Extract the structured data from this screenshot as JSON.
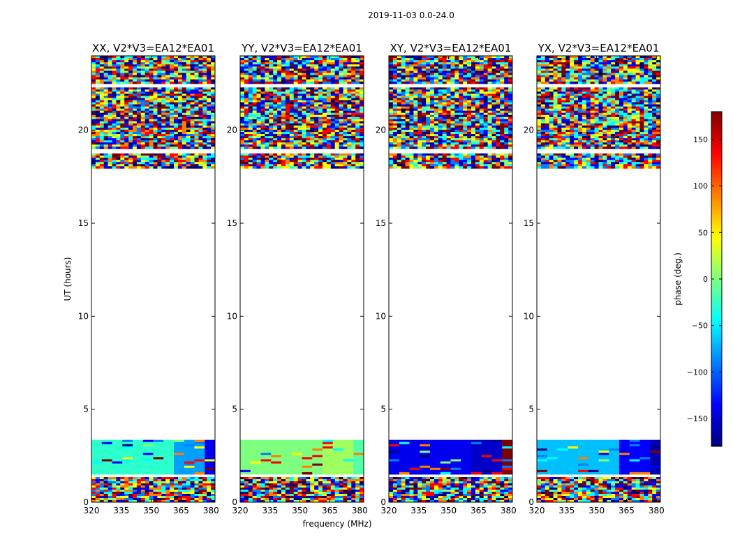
{
  "figure": {
    "suptitle": "2019-11-03 0.0-24.0",
    "xlabel": "frequency (MHz)",
    "ylabel": "UT (hours)"
  },
  "chart_data": [
    {
      "type": "heatmap",
      "title": "XX, V2*V3=EA12*EA01",
      "xlim": [
        320,
        382
      ],
      "ylim": [
        0,
        24
      ],
      "x_ticks": [
        "320",
        "335",
        "350",
        "365",
        "380"
      ],
      "y_ticks": [
        "0",
        "5",
        "10",
        "15",
        "20"
      ],
      "data_time_ranges_hours": [
        [
          0.0,
          1.35
        ],
        [
          1.5,
          3.35
        ],
        [
          17.95,
          24.0
        ]
      ]
    },
    {
      "type": "heatmap",
      "title": "YY, V2*V3=EA12*EA01",
      "xlim": [
        320,
        382
      ],
      "ylim": [
        0,
        24
      ],
      "x_ticks": [
        "320",
        "335",
        "350",
        "365",
        "380"
      ],
      "y_ticks": [
        "0",
        "5",
        "10",
        "15",
        "20"
      ],
      "data_time_ranges_hours": [
        [
          0.0,
          1.35
        ],
        [
          1.5,
          3.35
        ],
        [
          17.95,
          24.0
        ]
      ]
    },
    {
      "type": "heatmap",
      "title": "XY, V2*V3=EA12*EA01",
      "xlim": [
        320,
        382
      ],
      "ylim": [
        0,
        24
      ],
      "x_ticks": [
        "320",
        "335",
        "350",
        "365",
        "380"
      ],
      "y_ticks": [
        "0",
        "5",
        "10",
        "15",
        "20"
      ],
      "data_time_ranges_hours": [
        [
          0.0,
          1.35
        ],
        [
          1.5,
          3.35
        ],
        [
          17.95,
          24.0
        ]
      ]
    },
    {
      "type": "heatmap",
      "title": "YX, V2*V3=EA12*EA01",
      "xlim": [
        320,
        382
      ],
      "ylim": [
        0,
        24
      ],
      "x_ticks": [
        "320",
        "335",
        "350",
        "365",
        "380"
      ],
      "y_ticks": [
        "0",
        "5",
        "10",
        "15",
        "20"
      ],
      "data_time_ranges_hours": [
        [
          0.0,
          1.35
        ],
        [
          1.5,
          3.35
        ],
        [
          17.95,
          24.0
        ]
      ]
    }
  ],
  "colorbar": {
    "label": "phase (deg.)",
    "range": [
      -180,
      180
    ],
    "ticks": [
      -150,
      -100,
      -50,
      0,
      50,
      100,
      150
    ],
    "tick_labels": [
      "−150",
      "−100",
      "−50",
      "0",
      "50",
      "100",
      "150"
    ],
    "colormap": "jet"
  },
  "colors": {
    "jet": [
      "#00007f",
      "#0000ff",
      "#007fff",
      "#00ffff",
      "#7fff7f",
      "#ffff00",
      "#ff7f00",
      "#ff0000",
      "#7f0000"
    ]
  }
}
